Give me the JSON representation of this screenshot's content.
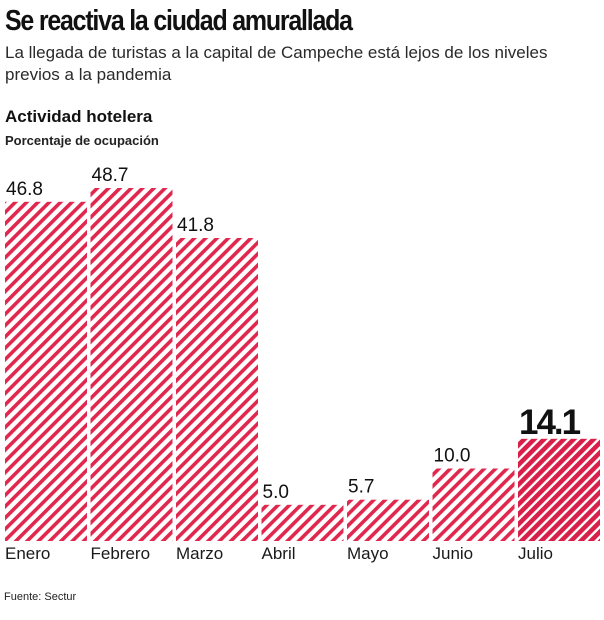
{
  "headline": "Se reactiva la ciudad amurallada",
  "subtitle": "La llegada de turistas a la capital de Campeche está lejos de los niveles previos a la pandemia",
  "source": "Fuente: Sectur",
  "colors": {
    "bar_stripe": "#e0284f",
    "bar_highlight": "#d81f49",
    "text": "#1a1a1a"
  },
  "chart_data": {
    "type": "bar",
    "title": "Actividad hotelera",
    "ylabel": "Porcentaje de ocupación",
    "categories": [
      "Enero",
      "Febrero",
      "Marzo",
      "Abril",
      "Mayo",
      "Junio",
      "Julio"
    ],
    "values": [
      46.8,
      48.7,
      41.8,
      5.0,
      5.7,
      10.0,
      14.1
    ],
    "value_labels": [
      "46.8",
      "48.7",
      "41.8",
      "5.0",
      "5.7",
      "10.0",
      "14.1"
    ],
    "highlight_index": 6,
    "ylim": [
      0,
      48.7
    ],
    "grid": false,
    "legend": "none"
  }
}
